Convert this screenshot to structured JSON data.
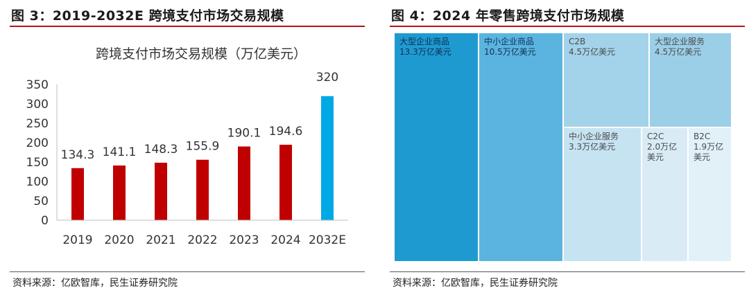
{
  "left": {
    "figure_title": "图 3：2019-2032E 跨境支付市场交易规模",
    "source": "资料来源：亿欧智库，民生证券研究院"
  },
  "right": {
    "figure_title": "图 4：2024 年零售跨境支付市场规模",
    "source": "资料来源：亿欧智库，民生证券研究院"
  },
  "chart_data": [
    {
      "type": "bar",
      "title": "跨境支付市场交易规模（万亿美元）",
      "categories": [
        "2019",
        "2020",
        "2021",
        "2022",
        "2023",
        "2024",
        "2032E"
      ],
      "values": [
        134.3,
        141.1,
        148.3,
        155.9,
        190.1,
        194.6,
        320
      ],
      "value_labels": [
        "134.3",
        "141.1",
        "148.3",
        "155.9",
        "190.1",
        "194.6",
        "320"
      ],
      "ylim": [
        0,
        350
      ],
      "yticks": [
        "0",
        "50",
        "100",
        "150",
        "200",
        "250",
        "300",
        "350"
      ],
      "grid": false,
      "colors": {
        "actual": "#c00000",
        "forecast": "#00a9e6"
      }
    },
    {
      "type": "treemap",
      "items": [
        {
          "name": "大型企业商品",
          "value": 13.3,
          "label": "13.3万亿美元",
          "color": "#1f9ad0"
        },
        {
          "name": "中小企业商品",
          "value": 10.5,
          "label": "10.5万亿美元",
          "color": "#5bb4df"
        },
        {
          "name": "C2B",
          "value": 4.5,
          "label": "4.5万亿美元",
          "color": "#a3d3ea"
        },
        {
          "name": "大型企业服务",
          "value": 4.5,
          "label": "4.5万亿美元",
          "color": "#9bcfe8"
        },
        {
          "name": "中小企业服务",
          "value": 3.3,
          "label": "3.3万亿美元",
          "color": "#c6e3f2"
        },
        {
          "name": "C2C",
          "value": 2.0,
          "label": "2.0万亿\n美元",
          "color": "#d9ecf6"
        },
        {
          "name": "B2C",
          "value": 1.9,
          "label": "1.9万亿\n美元",
          "color": "#e2f0f8"
        }
      ]
    }
  ]
}
